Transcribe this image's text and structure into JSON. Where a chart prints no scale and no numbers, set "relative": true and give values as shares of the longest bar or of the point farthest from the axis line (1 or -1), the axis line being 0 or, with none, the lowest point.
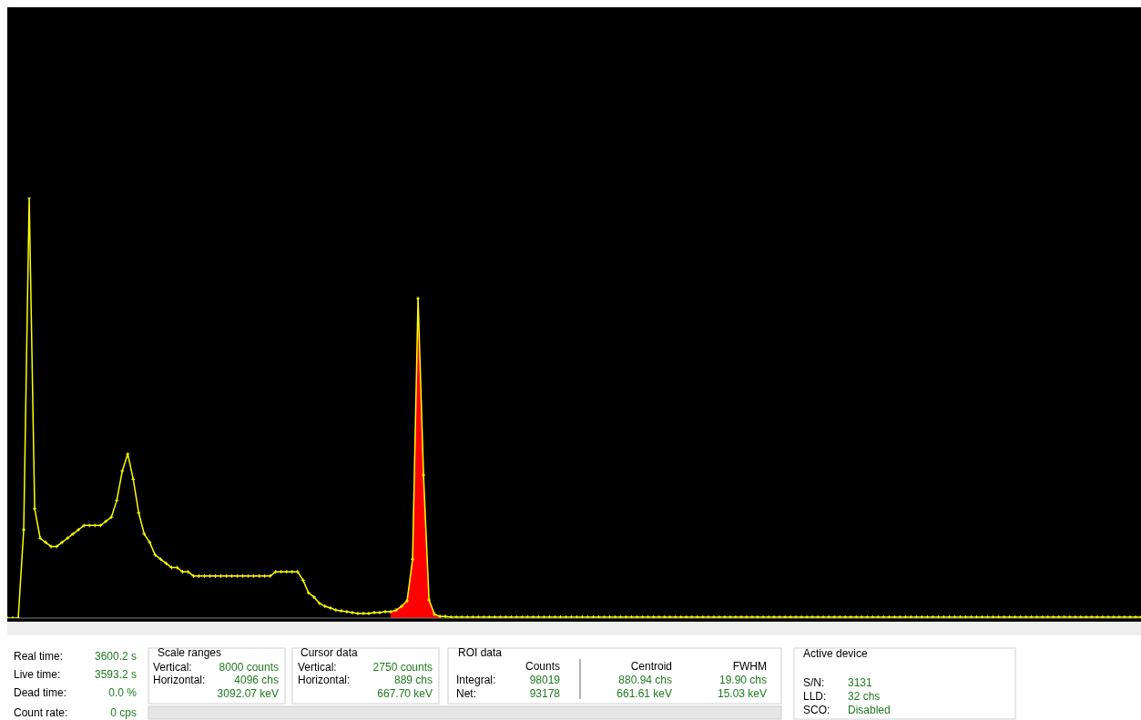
{
  "chart_data": {
    "type": "line",
    "relative": true,
    "marker": "cross",
    "line_style": "solid",
    "categories": [
      null,
      null,
      null,
      null,
      null,
      null,
      null,
      null,
      null,
      null,
      null,
      null,
      null,
      null,
      null,
      null,
      null,
      null,
      null,
      null,
      null,
      null,
      null,
      null,
      null,
      null,
      null,
      null,
      null,
      null,
      null,
      null,
      null,
      null,
      null,
      null,
      null,
      null,
      null,
      null,
      null,
      null,
      null,
      null,
      null,
      null,
      null,
      null,
      null,
      null,
      null,
      null,
      null,
      null,
      null,
      null,
      null,
      null,
      null,
      null,
      null,
      null,
      null,
      null,
      null,
      null,
      null,
      null,
      null,
      null,
      null,
      null,
      null,
      null,
      null,
      null,
      null,
      null,
      null,
      null,
      null,
      null,
      null,
      null,
      null,
      null,
      null,
      null,
      null,
      null,
      null,
      null,
      null,
      null,
      null,
      null,
      null,
      null,
      null,
      null,
      null,
      null,
      null,
      null,
      null,
      null,
      null,
      null,
      null,
      null,
      null,
      null,
      null,
      null,
      null,
      null,
      null,
      null,
      null,
      null,
      null,
      null,
      null,
      null,
      null,
      null,
      null,
      null,
      null,
      null,
      null,
      null,
      null,
      null,
      null,
      null,
      null,
      null,
      null,
      null,
      null,
      null,
      null,
      null,
      null,
      null,
      null,
      null,
      null,
      null,
      null,
      null,
      null,
      null,
      null,
      null,
      null,
      null,
      null,
      null,
      null,
      null,
      null,
      null,
      null,
      null,
      null,
      null,
      null,
      null,
      null,
      null,
      null,
      null,
      null,
      null,
      null,
      null,
      null,
      null,
      null,
      null,
      null,
      null,
      null,
      null,
      null,
      null,
      null,
      null,
      null,
      null,
      null,
      null,
      null,
      null,
      null,
      null,
      null,
      null,
      null,
      null,
      null,
      null,
      null,
      null,
      null,
      null
    ],
    "series": [
      {
        "type": "area",
        "color": "#ff0000",
        "marker": "none",
        "values": [
          null,
          null,
          null,
          null,
          null,
          null,
          null,
          null,
          null,
          null,
          null,
          null,
          null,
          null,
          null,
          null,
          null,
          null,
          null,
          null,
          null,
          null,
          null,
          null,
          null,
          null,
          null,
          null,
          null,
          null,
          null,
          null,
          null,
          null,
          null,
          null,
          null,
          null,
          null,
          null,
          null,
          null,
          null,
          null,
          null,
          null,
          null,
          null,
          null,
          null,
          null,
          null,
          null,
          null,
          null,
          null,
          null,
          null,
          null,
          null,
          null,
          null,
          null,
          null,
          null,
          null,
          null,
          null,
          null,
          null,
          0.015,
          0.019,
          0.028,
          0.041,
          0.14,
          0.76,
          0.34,
          0.043,
          0.009,
          0.004,
          null,
          null,
          null,
          null,
          null,
          null,
          null,
          null,
          null,
          null,
          null,
          null,
          null,
          null,
          null,
          null,
          null,
          null,
          null,
          null,
          null,
          null,
          null,
          null,
          null,
          null,
          null,
          null,
          null,
          null,
          null,
          null,
          null,
          null,
          null,
          null,
          null,
          null,
          null,
          null,
          null,
          null,
          null,
          null,
          null,
          null,
          null,
          null,
          null,
          null,
          null,
          null,
          null,
          null,
          null,
          null,
          null,
          null,
          null,
          null,
          null,
          null,
          null,
          null,
          null,
          null,
          null,
          null,
          null,
          null,
          null,
          null,
          null,
          null,
          null,
          null,
          null,
          null,
          null,
          null,
          null,
          null,
          null,
          null,
          null,
          null,
          null,
          null,
          null,
          null,
          null,
          null,
          null,
          null,
          null,
          null,
          null,
          null,
          null,
          null,
          null,
          null,
          null,
          null,
          null,
          null,
          null,
          null,
          null,
          null,
          null,
          null,
          null,
          null,
          null,
          null,
          null,
          null,
          null,
          null,
          null,
          null,
          null,
          null,
          null,
          null,
          null,
          null
        ]
      },
      {
        "color": "#ffff00",
        "values": [
          0,
          0,
          0,
          0.21,
          1,
          0.26,
          0.19,
          0.18,
          0.17,
          0.17,
          0.18,
          0.19,
          0.2,
          0.21,
          0.22,
          0.22,
          0.22,
          0.22,
          0.23,
          0.24,
          0.28,
          0.35,
          0.39,
          0.33,
          0.25,
          0.2,
          0.18,
          0.15,
          0.14,
          0.13,
          0.12,
          0.12,
          0.11,
          0.11,
          0.1,
          0.1,
          0.1,
          0.1,
          0.1,
          0.1,
          0.1,
          0.1,
          0.1,
          0.1,
          0.1,
          0.1,
          0.1,
          0.1,
          0.1,
          0.11,
          0.11,
          0.11,
          0.11,
          0.11,
          0.09,
          0.06,
          0.05,
          0.035,
          0.028,
          0.024,
          0.019,
          0.017,
          0.015,
          0.013,
          0.011,
          0.011,
          0.011,
          0.013,
          0.013,
          0.015,
          0.015,
          0.019,
          0.028,
          0.041,
          0.14,
          0.76,
          0.34,
          0.043,
          0.009,
          0.004,
          0.004,
          0.002,
          0.002,
          0.002,
          0.002,
          0.002,
          0.002,
          0.002,
          0.002,
          0.002,
          0.002,
          0.002,
          0.002,
          0.002,
          0.002,
          0.002,
          0.002,
          0.002,
          0.002,
          0.002,
          0.002,
          0.002,
          0.002,
          0.002,
          0.002,
          0.002,
          0.002,
          0.002,
          0.002,
          0.002,
          0.002,
          0.002,
          0.002,
          0.002,
          0.002,
          0.002,
          0.002,
          0.002,
          0.002,
          0.002,
          0.002,
          0.002,
          0.002,
          0.002,
          0.002,
          0.002,
          0.002,
          0.002,
          0.002,
          0.002,
          0.002,
          0.002,
          0.002,
          0.002,
          0.002,
          0.002,
          0.002,
          0.002,
          0.002,
          0.002,
          0.002,
          0.002,
          0.002,
          0.002,
          0.002,
          0.002,
          0.002,
          0.002,
          0.002,
          0.002,
          0.002,
          0.002,
          0.002,
          0.002,
          0.002,
          0.002,
          0.002,
          0.002,
          0.002,
          0.002,
          0.002,
          0.002,
          0.002,
          0.002,
          0.002,
          0.002,
          0.002,
          0.002,
          0.002,
          0.002,
          0.002,
          0.002,
          0.002,
          0.002,
          0.002,
          0.002,
          0.002,
          0.002,
          0.002,
          0.002,
          0.002,
          0.002,
          0.002,
          0.002,
          0.002,
          0.002,
          0.002,
          0.002,
          0.002,
          0.002,
          0.002,
          0.002,
          0.002,
          0.002,
          0.002,
          0.002,
          0.002,
          0.002,
          0.002,
          0.002,
          0.002,
          0.002,
          0.002,
          0.002,
          0.002,
          0.002,
          0.002,
          0.002
        ]
      }
    ],
    "annotations": [
      "Real time:",
      "3600.2 s",
      "Live time:",
      "3593.2 s",
      "Dead time:",
      "0.0 %",
      "Count rate:",
      "0 cps",
      "Scale ranges",
      "Vertical:",
      "8000 counts",
      "Horizontal:",
      "4096 chs",
      "3092.07 keV",
      "Cursor data",
      "Vertical:",
      "2750 counts",
      "Horizontal:",
      "889 chs",
      "667.70 keV",
      "ROI data",
      "Counts",
      "Integral:",
      "98019",
      "Net:",
      "93178",
      "Centroid",
      "880.94 chs",
      "661.61 keV",
      "FWHM",
      "19.90 chs",
      "15.03 keV",
      "Active device",
      "S/N:",
      "3131",
      "LLD:",
      "32 chs",
      "SCO:",
      "Disabled"
    ]
  }
}
